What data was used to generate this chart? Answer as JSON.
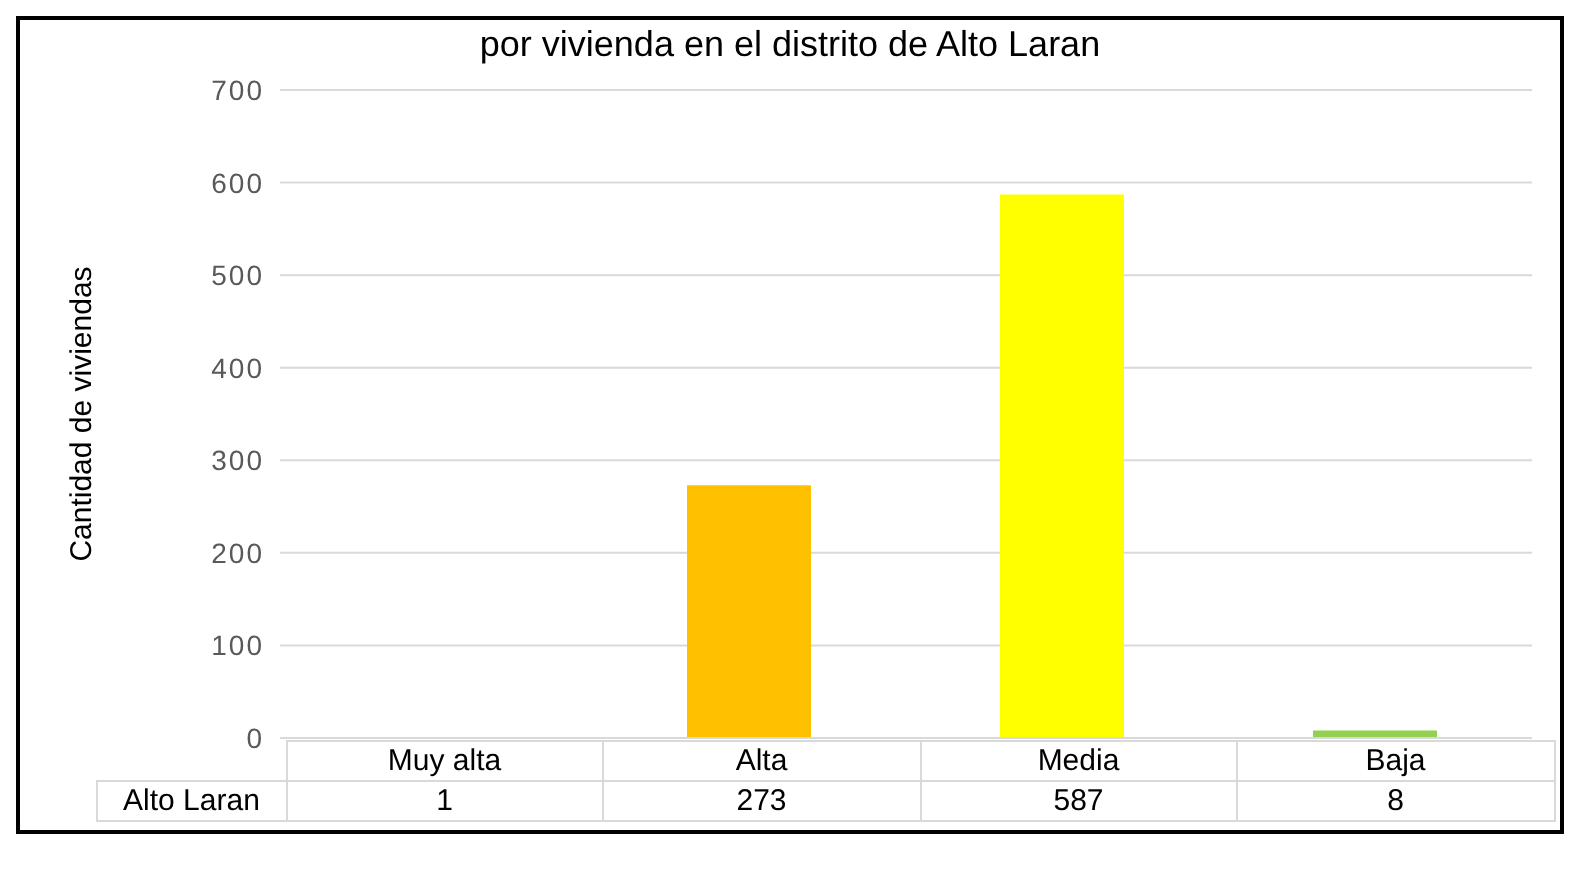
{
  "chart_data": {
    "type": "bar",
    "title": "por vivienda en el distrito de Alto Laran",
    "ylabel": "Cantidad de viviendas",
    "categories": [
      "Muy alta",
      "Alta",
      "Media",
      "Baja"
    ],
    "series": [
      {
        "name": "Alto Laran",
        "colors": [
          "#c00000",
          "#ffc000",
          "#ffff00",
          "#92d050"
        ],
        "values": [
          1,
          273,
          587,
          8
        ]
      }
    ],
    "ylim": [
      0,
      700
    ],
    "yticks": [
      0,
      100,
      200,
      300,
      400,
      500,
      600,
      700
    ],
    "grid": "y",
    "data_labels": true
  }
}
